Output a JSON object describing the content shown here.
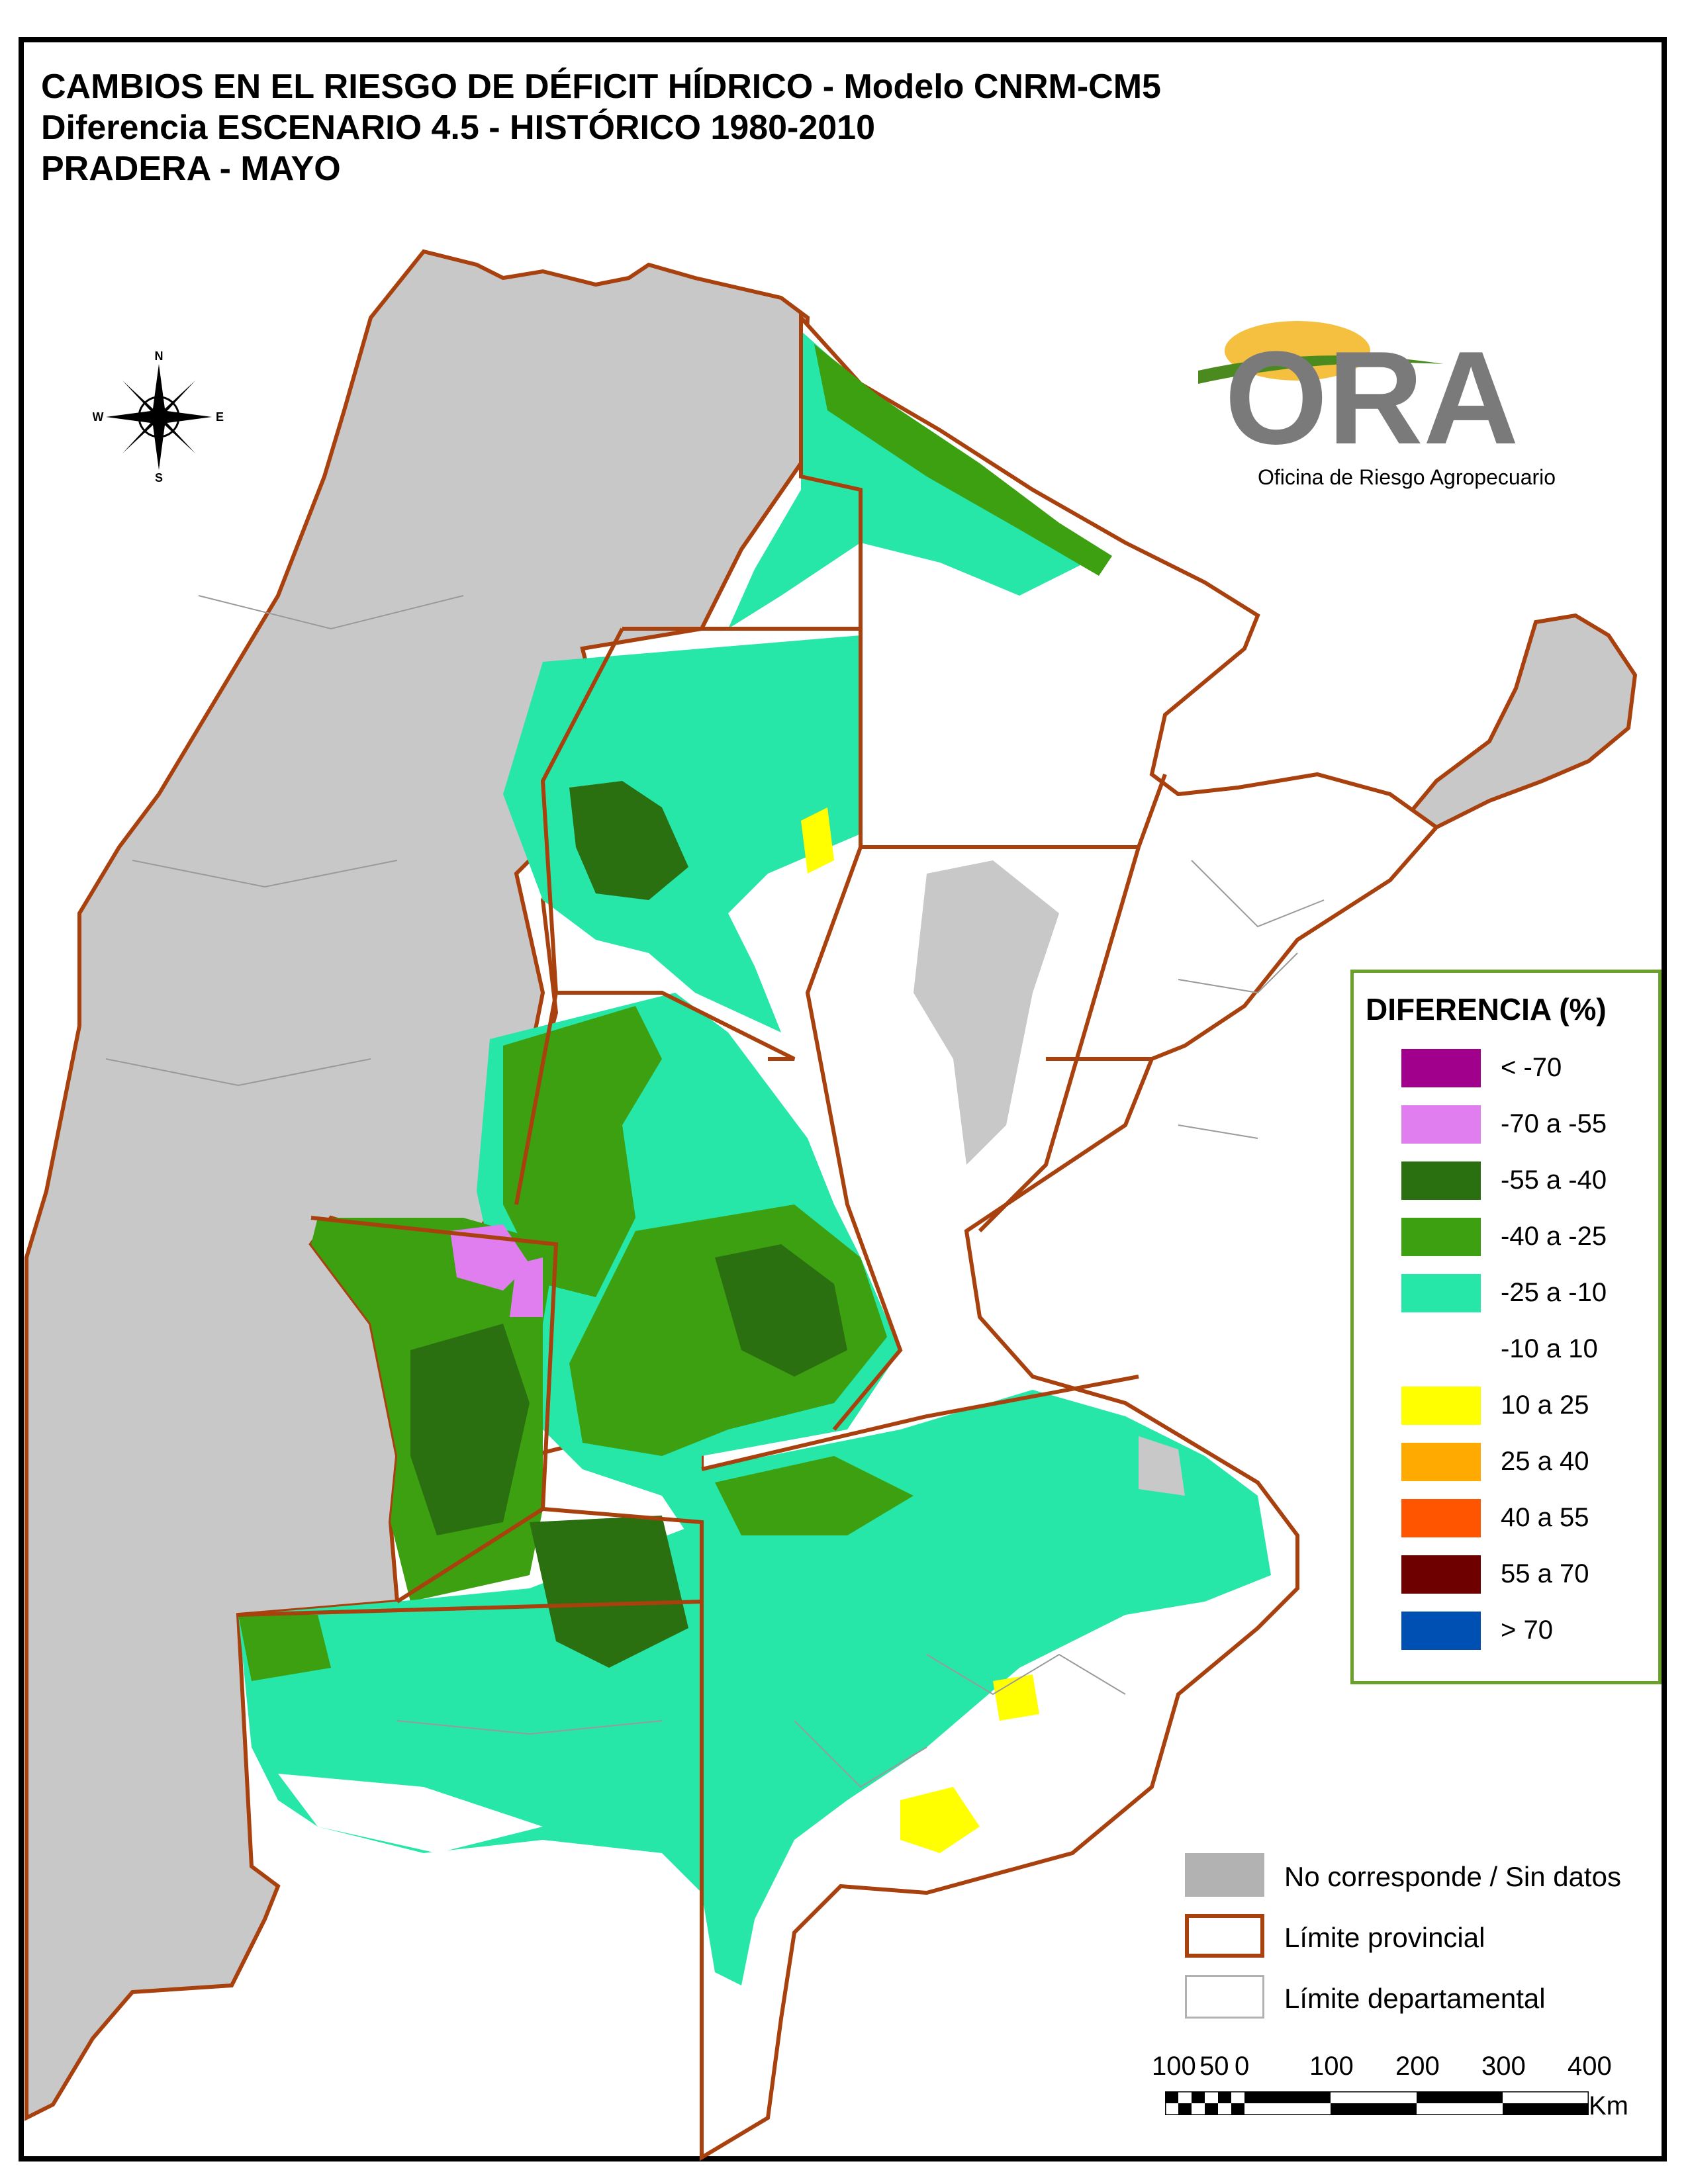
{
  "title": {
    "line1": "CAMBIOS EN EL RIESGO DE DÉFICIT HÍDRICO - Modelo CNRM-CM5",
    "line2": "Diferencia ESCENARIO 4.5 - HISTÓRICO 1980-2010",
    "line3": "PRADERA - MAYO"
  },
  "compass": {
    "n": "N",
    "s": "S",
    "e": "E",
    "w": "W"
  },
  "logo": {
    "letters": "ORA",
    "subtitle": "Oficina de Riesgo Agropecuario"
  },
  "legend": {
    "title": "DIFERENCIA (%)",
    "items": [
      {
        "label": "< -70",
        "color": "#a0008c"
      },
      {
        "label": "-70 a -55",
        "color": "#e07ef0"
      },
      {
        "label": "-55 a -40",
        "color": "#2a7010"
      },
      {
        "label": "-40 a -25",
        "color": "#3ca010"
      },
      {
        "label": "-25 a -10",
        "color": "#26e6a8"
      },
      {
        "label": "-10 a 10",
        "color": "#ffffff"
      },
      {
        "label": "10 a 25",
        "color": "#ffff00"
      },
      {
        "label": "25 a 40",
        "color": "#ffaa00"
      },
      {
        "label": "40 a 55",
        "color": "#ff5500"
      },
      {
        "label": "55 a 70",
        "color": "#6e0000"
      },
      {
        "label": "> 70",
        "color": "#0050b4"
      }
    ]
  },
  "legend2": {
    "items": [
      {
        "label": "No corresponde / Sin datos",
        "color": "#b2b2b2",
        "kind": "fill"
      },
      {
        "label": "Límite provincial",
        "color": "#a8410e",
        "kind": "province"
      },
      {
        "label": "Límite departamental",
        "color": "#b2b2b2",
        "kind": "department"
      }
    ]
  },
  "scalebar": {
    "ticks": [
      "100",
      "50",
      "0",
      "100",
      "200",
      "300",
      "400"
    ],
    "unit": "Km"
  },
  "colors": {
    "province_border": "#a8410e",
    "department_border": "#9a9a9a",
    "no_data": "#c8c8c8"
  }
}
